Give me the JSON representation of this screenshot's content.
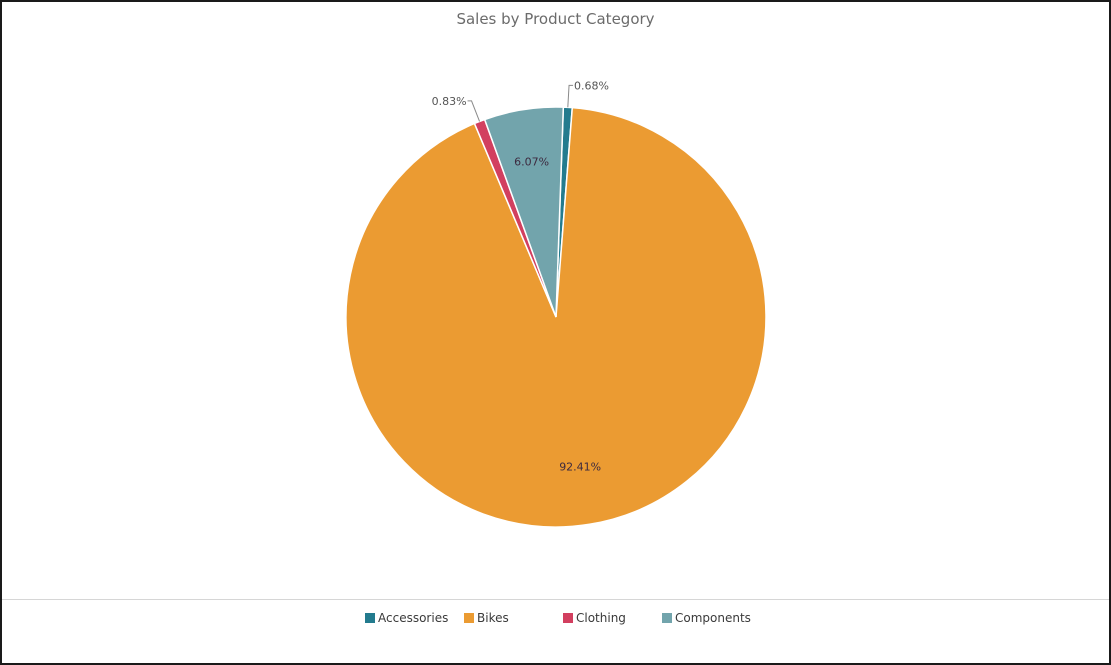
{
  "chart_data": {
    "type": "pie",
    "title": "Sales by Product Category",
    "categories": [
      "Accessories",
      "Bikes",
      "Clothing",
      "Components"
    ],
    "values": [
      0.68,
      92.41,
      0.83,
      6.07
    ],
    "labels": [
      "0.68%",
      "92.41%",
      "0.83%",
      "6.07%"
    ],
    "colors": [
      "#237b8e",
      "#eb9b32",
      "#d23f5f",
      "#72a4ac"
    ],
    "legend_position": "bottom"
  }
}
